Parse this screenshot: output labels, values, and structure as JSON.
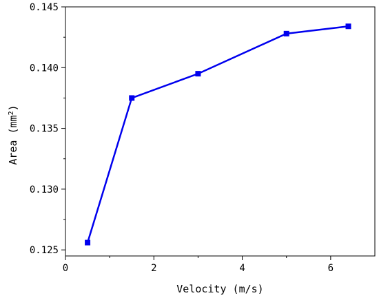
{
  "chart_data": {
    "type": "line",
    "title": "",
    "xlabel": "Velocity (m/s)",
    "ylabel_main": "Area (mm",
    "ylabel_sup": "2",
    "ylabel_close": ")",
    "xlim": [
      0,
      7
    ],
    "ylim": [
      0.1245,
      0.145
    ],
    "x_ticks": [
      0,
      2,
      4,
      6
    ],
    "x_tick_labels": [
      "0",
      "2",
      "4",
      "6"
    ],
    "y_ticks": [
      0.125,
      0.13,
      0.135,
      0.14,
      0.145
    ],
    "y_tick_labels": [
      "0.125",
      "0.130",
      "0.135",
      "0.140",
      "0.145"
    ],
    "grid": false,
    "legend": "none",
    "series": [
      {
        "color": "#0000ee",
        "marker": "square",
        "x": [
          0.5,
          1.5,
          3,
          5,
          6.4
        ],
        "y": [
          0.1256,
          0.1375,
          0.1395,
          0.1428,
          0.1434
        ]
      }
    ]
  }
}
